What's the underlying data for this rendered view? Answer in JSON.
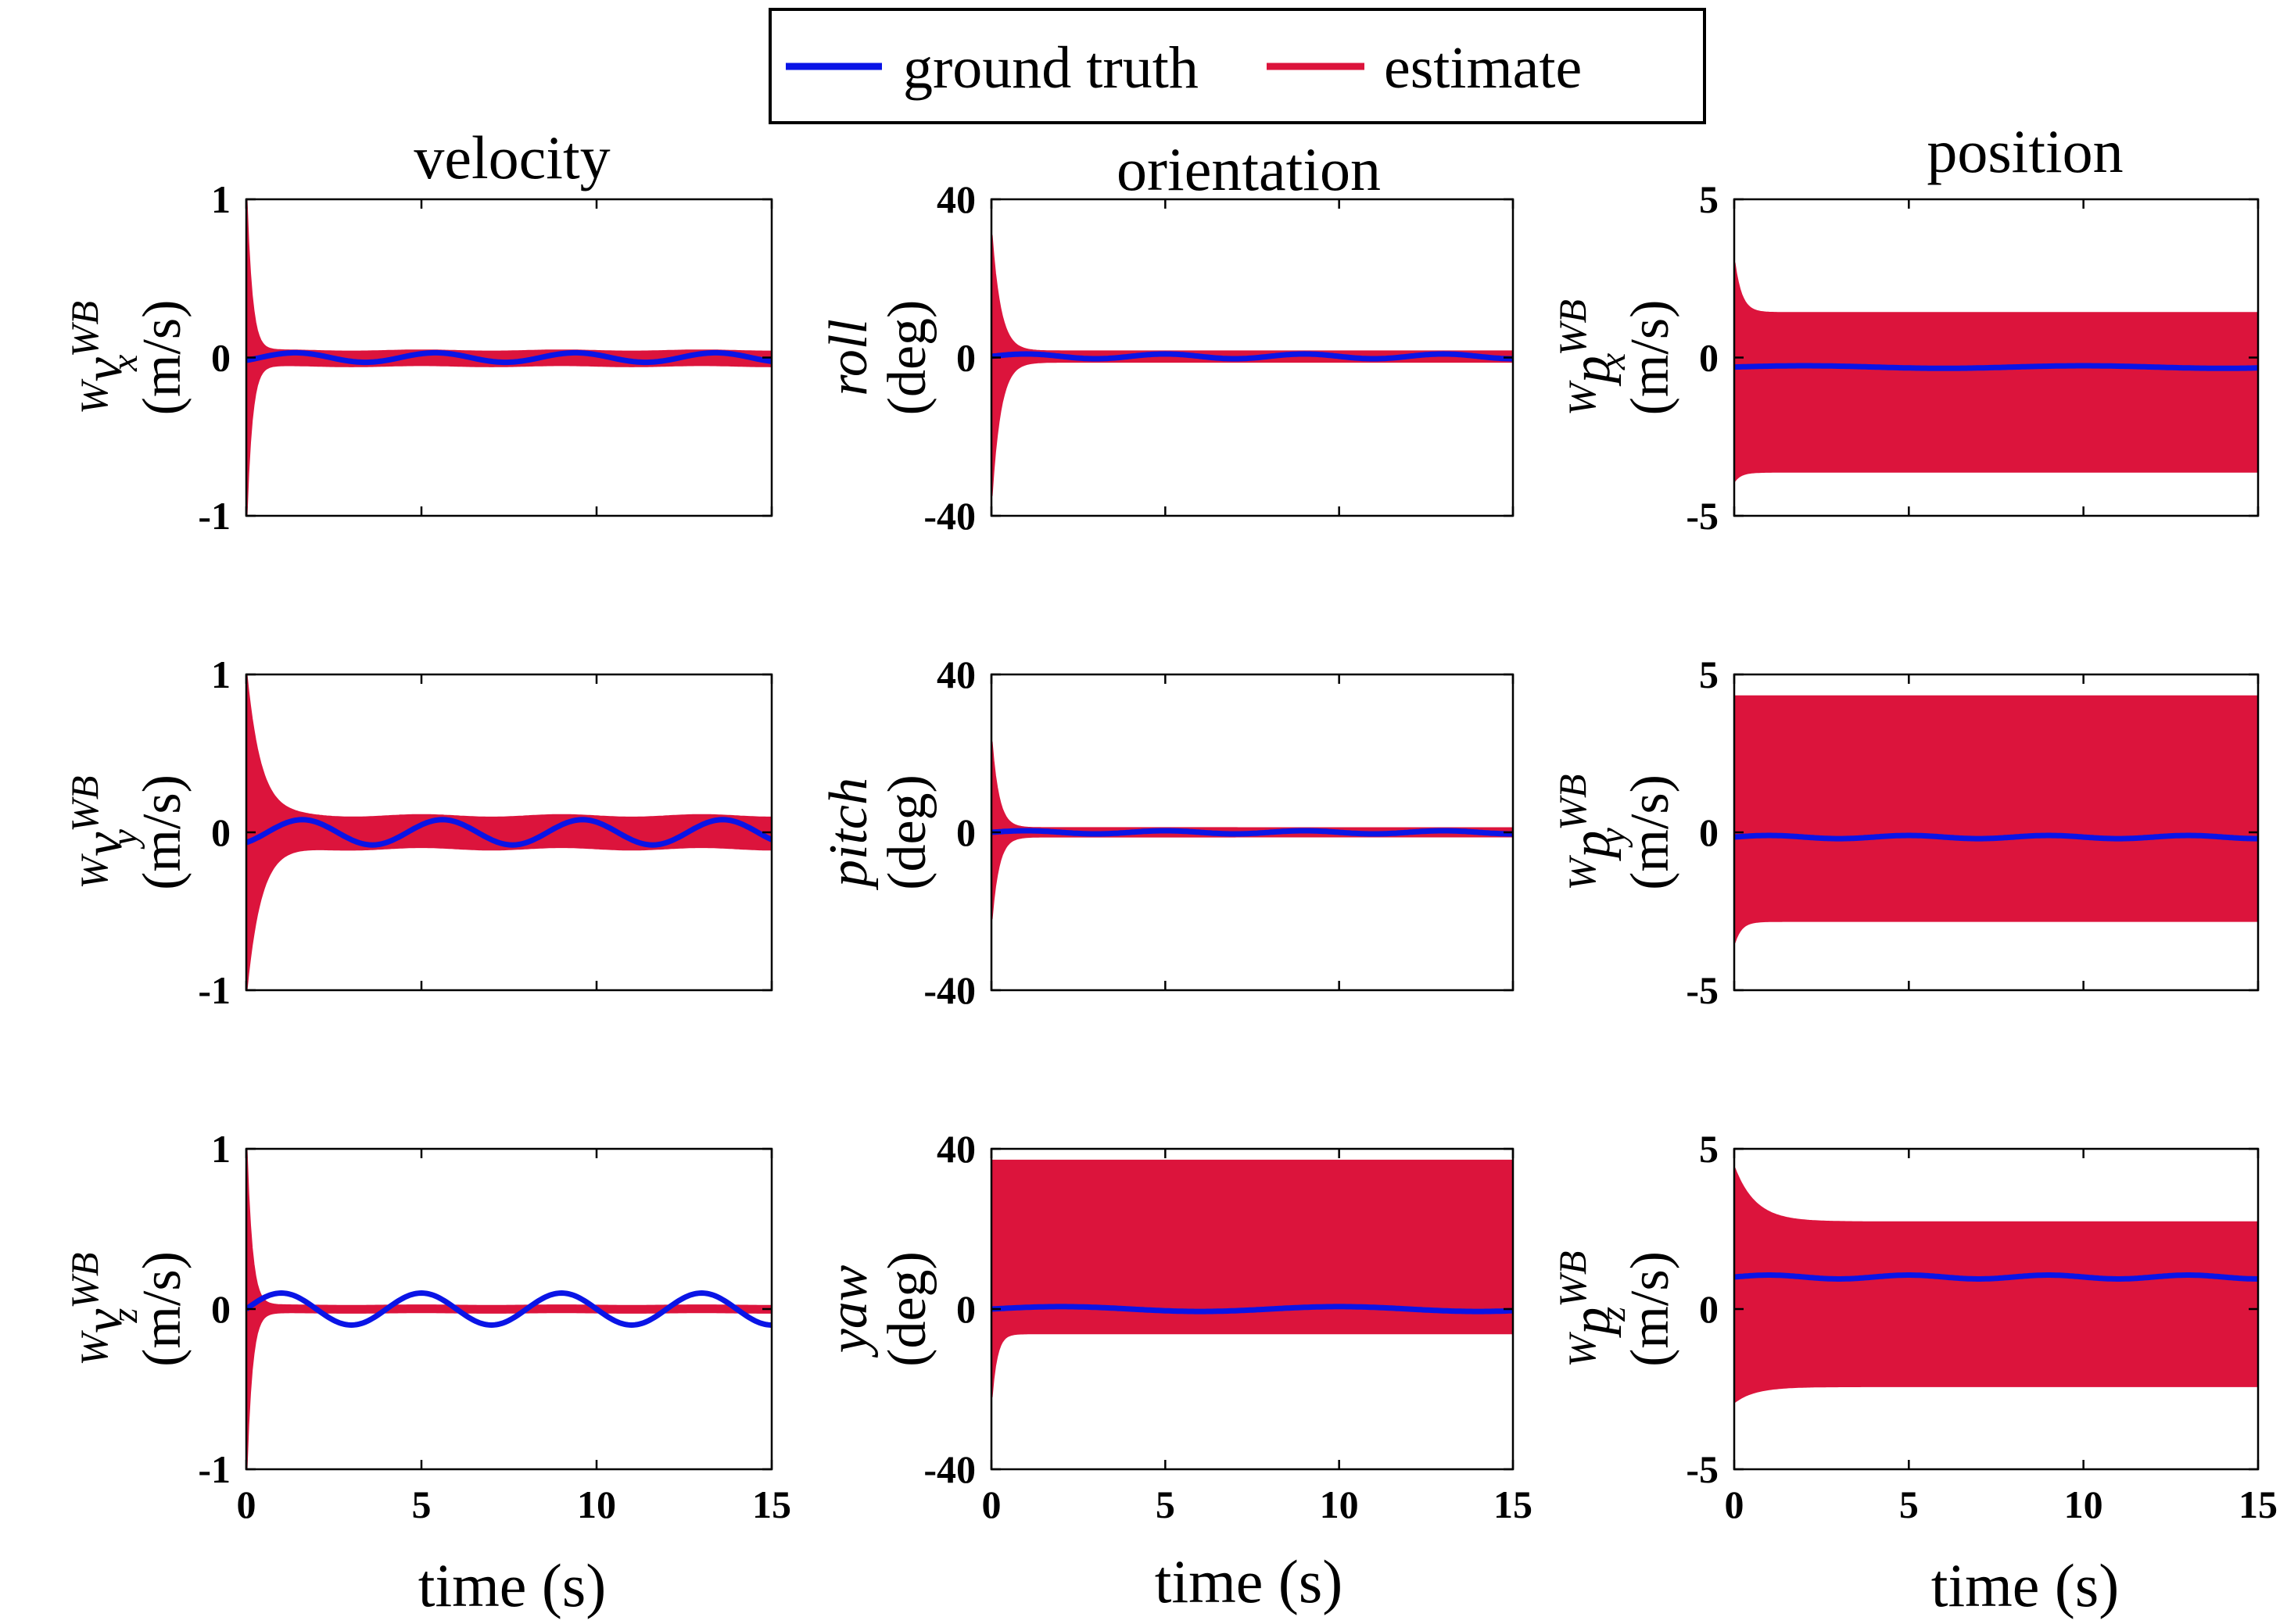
{
  "chart_data": {
    "type": "line",
    "legend": {
      "location": "top-center",
      "entries": [
        {
          "name": "ground truth",
          "color": "#0a14e6"
        },
        {
          "name": "estimate",
          "color": "#dc143c"
        }
      ]
    },
    "column_titles": [
      "velocity",
      "orientation",
      "position"
    ],
    "xlabel": "time (s)",
    "xlim": [
      0,
      15
    ],
    "xticks": [
      0,
      5,
      10,
      15
    ],
    "panels": [
      {
        "id": "vx",
        "row": 0,
        "col": 0,
        "ylabel_symbol": "v",
        "ylabel_super_left": "W",
        "ylabel_super": "WB",
        "ylabel_sub": "x",
        "ylabel_unit": "(m/s)",
        "ylim": [
          -1,
          1
        ],
        "yticks": [
          "1",
          "0",
          "-1"
        ],
        "ground_truth": {
          "type": "sine",
          "offset": 0.0,
          "amp": 0.03,
          "period": 4,
          "phase": 0.4
        },
        "estimate": {
          "peak_hi": 1.0,
          "peak_lo": -1.0,
          "decay": 0.15,
          "band_hi": 0.04,
          "band_lo": -0.05
        }
      },
      {
        "id": "roll",
        "row": 0,
        "col": 1,
        "ylabel_symbol": "roll",
        "ylabel_unit": "(deg)",
        "ylim": [
          -40,
          40
        ],
        "yticks": [
          "40",
          "0",
          "-40"
        ],
        "ground_truth": {
          "type": "sine",
          "offset": 0.3,
          "amp": 0.6,
          "period": 4,
          "phase": 0
        },
        "estimate": {
          "peak_hi": 31,
          "peak_lo": -35,
          "decay": 0.25,
          "band_hi": 1.5,
          "band_lo": -1.0
        }
      },
      {
        "id": "px",
        "row": 0,
        "col": 2,
        "ylabel_symbol": "p",
        "ylabel_super_left": "W",
        "ylabel_super": "WB",
        "ylabel_sub": "x",
        "ylabel_unit": "(m/s)",
        "ylim": [
          -5,
          5
        ],
        "yticks": [
          "5",
          "0",
          "-5"
        ],
        "ground_truth": {
          "type": "sine",
          "offset": -0.3,
          "amp": 0.04,
          "period": 8,
          "phase": 0
        },
        "estimate": {
          "peak_hi": 3.0,
          "peak_lo": -3.9,
          "decay": 0.2,
          "band_hi": 1.4,
          "band_lo": -3.6
        }
      },
      {
        "id": "vy",
        "row": 1,
        "col": 0,
        "ylabel_symbol": "v",
        "ylabel_super_left": "W",
        "ylabel_super": "WB",
        "ylabel_sub": "y",
        "ylabel_unit": "(m/s)",
        "ylim": [
          -1,
          1
        ],
        "yticks": [
          "1",
          "0",
          "-1"
        ],
        "ground_truth": {
          "type": "sine",
          "offset": 0.0,
          "amp": 0.08,
          "period": 4,
          "phase": 0.6
        },
        "estimate": {
          "peak_hi": 1.0,
          "peak_lo": -1.0,
          "decay": 0.4,
          "band_hi": 0.1,
          "band_lo": -0.1
        }
      },
      {
        "id": "pitch",
        "row": 1,
        "col": 1,
        "ylabel_symbol": "pitch",
        "ylabel_unit": "(deg)",
        "ylim": [
          -40,
          40
        ],
        "yticks": [
          "40",
          "0",
          "-40"
        ],
        "ground_truth": {
          "type": "sine",
          "offset": 0.0,
          "amp": 0.4,
          "period": 4,
          "phase": 0
        },
        "estimate": {
          "peak_hi": 23,
          "peak_lo": -22,
          "decay": 0.2,
          "band_hi": 1.0,
          "band_lo": -1.0
        }
      },
      {
        "id": "py",
        "row": 1,
        "col": 2,
        "ylabel_symbol": "p",
        "ylabel_super_left": "W",
        "ylabel_super": "WB",
        "ylabel_sub": "y",
        "ylabel_unit": "(m/s)",
        "ylim": [
          -5,
          5
        ],
        "yticks": [
          "5",
          "0",
          "-5"
        ],
        "ground_truth": {
          "type": "sine",
          "offset": -0.15,
          "amp": 0.05,
          "period": 4,
          "phase": 0
        },
        "estimate": {
          "peak_hi": 4.3,
          "peak_lo": -3.5,
          "decay": 0.2,
          "band_hi": 4.3,
          "band_lo": -2.8
        }
      },
      {
        "id": "vz",
        "row": 2,
        "col": 0,
        "ylabel_symbol": "v",
        "ylabel_super_left": "W",
        "ylabel_super": "WB",
        "ylabel_sub": "z",
        "ylabel_unit": "(m/s)",
        "ylim": [
          -1,
          1
        ],
        "yticks": [
          "1",
          "0",
          "-1"
        ],
        "ground_truth": {
          "type": "sine",
          "offset": 0.0,
          "amp": 0.1,
          "period": 4,
          "phase": 0
        },
        "estimate": {
          "peak_hi": 1.0,
          "peak_lo": -1.0,
          "decay": 0.15,
          "band_hi": 0.02,
          "band_lo": -0.02
        }
      },
      {
        "id": "yaw",
        "row": 2,
        "col": 1,
        "ylabel_symbol": "yaw",
        "ylabel_unit": "(deg)",
        "ylim": [
          -40,
          40
        ],
        "yticks": [
          "40",
          "0",
          "-40"
        ],
        "ground_truth": {
          "type": "sine",
          "offset": 0.0,
          "amp": 0.6,
          "period": 8,
          "phase": 0
        },
        "estimate": {
          "peak_hi": 37,
          "peak_lo": -22,
          "decay": 0.15,
          "band_hi": 37,
          "band_lo": -6
        }
      },
      {
        "id": "pz",
        "row": 2,
        "col": 2,
        "ylabel_symbol": "p",
        "ylabel_super_left": "W",
        "ylabel_super": "WB",
        "ylabel_sub": "z",
        "ylabel_unit": "(m/s)",
        "ylim": [
          -5,
          5
        ],
        "yticks": [
          "5",
          "0",
          "-5"
        ],
        "ground_truth": {
          "type": "sine",
          "offset": 1.0,
          "amp": 0.06,
          "period": 4,
          "phase": 0
        },
        "estimate": {
          "peak_hi": 4.4,
          "peak_lo": -2.9,
          "decay": 0.6,
          "band_hi": 2.7,
          "band_lo": -2.4
        }
      }
    ]
  }
}
